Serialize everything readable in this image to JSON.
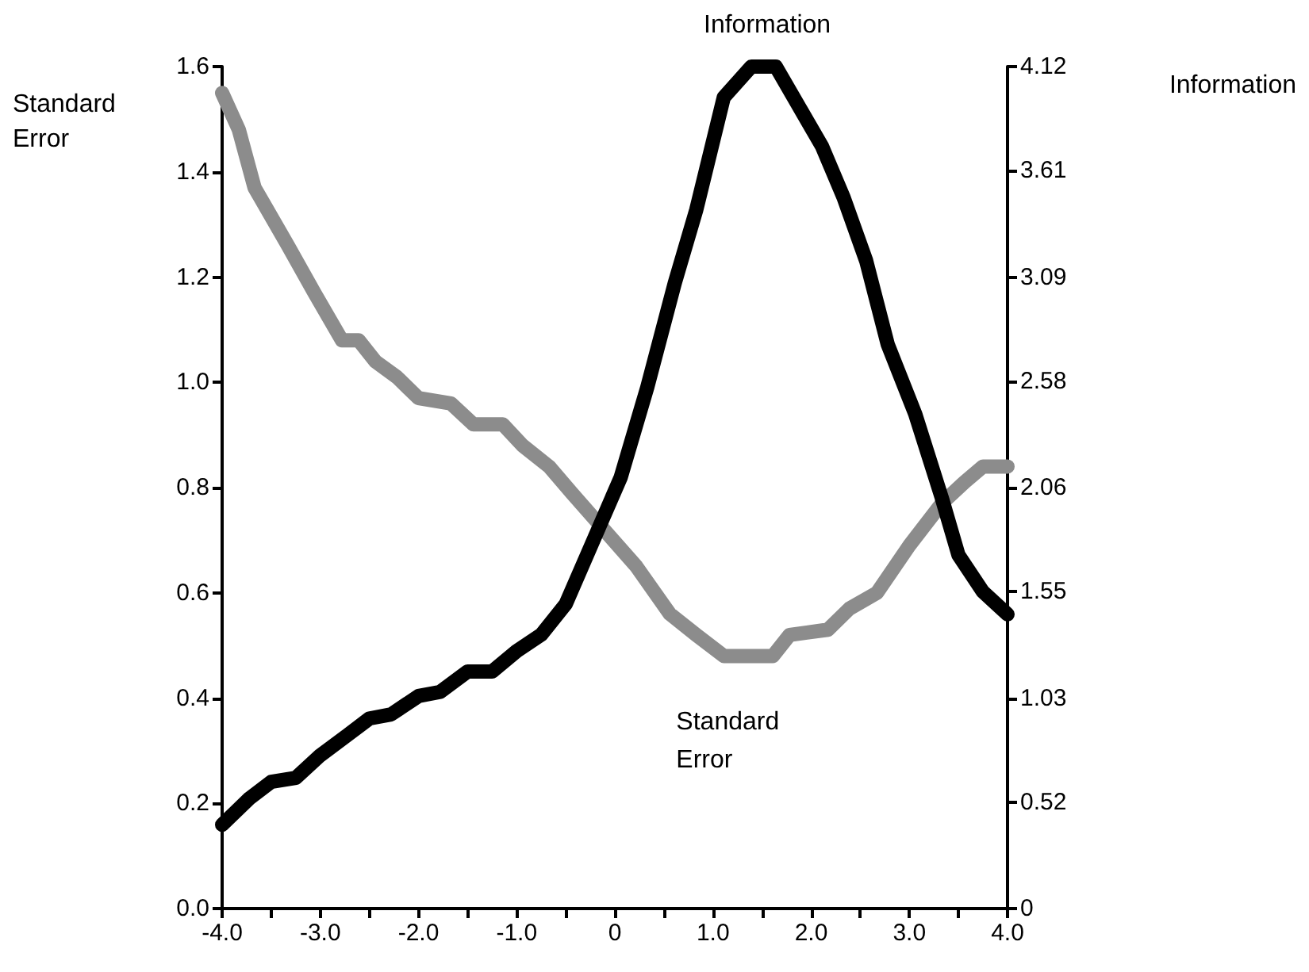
{
  "chart_data": {
    "type": "line",
    "ylabel": "Standard Error",
    "y2label": "Information",
    "xlim": [
      -4,
      4
    ],
    "xticks": [
      {
        "value": -4,
        "label": "-4.0"
      },
      {
        "value": -3.5,
        "label": null
      },
      {
        "value": -3,
        "label": "-3.0"
      },
      {
        "value": -2.5,
        "label": null
      },
      {
        "value": -2,
        "label": "-2.0"
      },
      {
        "value": -1.5,
        "label": null
      },
      {
        "value": -1,
        "label": "-1.0"
      },
      {
        "value": -0.5,
        "label": null
      },
      0,
      {
        "value": 0.5,
        "label": null
      },
      {
        "value": 1,
        "label": "1.0"
      },
      {
        "value": 1.5,
        "label": null
      },
      {
        "value": 2,
        "label": "2.0"
      },
      {
        "value": 2.5,
        "label": null
      },
      {
        "value": 3,
        "label": "3.0"
      },
      {
        "value": 3.5,
        "label": null
      },
      {
        "value": 4,
        "label": "4.0"
      }
    ],
    "ylim": [
      0,
      1.6
    ],
    "yticks": [
      {
        "value": 0,
        "label": "0.0"
      },
      0.2,
      0.4,
      0.6,
      0.8,
      {
        "value": 1,
        "label": "1.0"
      },
      1.2,
      1.4,
      1.6
    ],
    "y2lim": [
      0,
      4.12
    ],
    "y2ticks": [
      0,
      0.52,
      1.03,
      1.55,
      2.06,
      2.58,
      3.09,
      3.61,
      4.12
    ],
    "grid": false,
    "legend": false,
    "line_style": "solid",
    "series": [
      {
        "name": "Information",
        "color": "#000000",
        "axis": "y2",
        "x": [
          -4,
          -3.72,
          -3.5,
          -3.25,
          -3,
          -2.72,
          -2.5,
          -2.28,
          -2,
          -1.78,
          -1.5,
          -1.25,
          -1,
          -0.75,
          -0.5,
          -0.22,
          0.06,
          0.33,
          0.61,
          0.83,
          1.11,
          1.39,
          1.64,
          2.11,
          2.33,
          2.56,
          2.78,
          3.06,
          3.33,
          3.5,
          3.75,
          4
        ],
        "values": [
          0.41,
          0.54,
          0.62,
          0.64,
          0.75,
          0.85,
          0.93,
          0.95,
          1.04,
          1.06,
          1.16,
          1.16,
          1.26,
          1.34,
          1.49,
          1.8,
          2.11,
          2.55,
          3.06,
          3.42,
          3.97,
          4.12,
          4.12,
          3.73,
          3.48,
          3.17,
          2.76,
          2.42,
          2.01,
          1.73,
          1.55,
          1.44
        ]
      },
      {
        "name": "Standard Error",
        "color": "#8c8c8c",
        "x": [
          -4,
          -3.83,
          -3.67,
          -3.33,
          -3.06,
          -2.78,
          -2.61,
          -2.44,
          -2.22,
          -2,
          -1.67,
          -1.44,
          -1.14,
          -0.94,
          -0.67,
          -0.44,
          -0.11,
          0.22,
          0.56,
          0.83,
          1.11,
          1.61,
          1.78,
          2.17,
          2.39,
          2.67,
          3,
          3.33,
          3.56,
          3.75,
          4
        ],
        "values": [
          1.55,
          1.48,
          1.37,
          1.26,
          1.17,
          1.08,
          1.08,
          1.04,
          1.01,
          0.97,
          0.96,
          0.92,
          0.92,
          0.88,
          0.84,
          0.79,
          0.72,
          0.65,
          0.56,
          0.52,
          0.48,
          0.48,
          0.52,
          0.53,
          0.57,
          0.6,
          0.69,
          0.77,
          0.81,
          0.84,
          0.84
        ]
      }
    ]
  }
}
